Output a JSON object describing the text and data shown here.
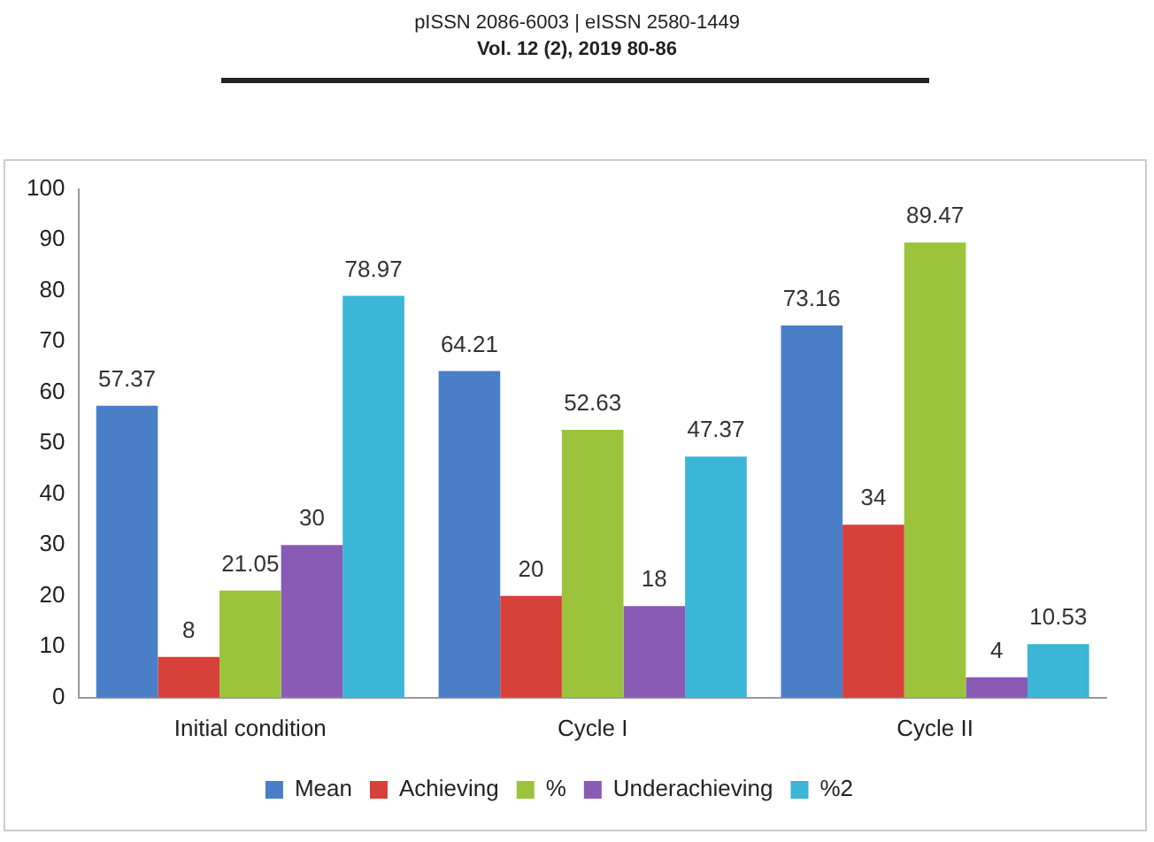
{
  "chart_data": {
    "type": "bar",
    "categories": [
      "Initial condition",
      "Cycle I",
      "Cycle II"
    ],
    "series": [
      {
        "name": "Mean",
        "color": "#4a7fc8",
        "values": [
          57.37,
          64.21,
          73.16
        ]
      },
      {
        "name": "Achieving",
        "color": "#d8403a",
        "values": [
          8,
          20,
          34
        ]
      },
      {
        "name": "%",
        "color": "#9bc43c",
        "values": [
          21.05,
          52.63,
          89.47
        ]
      },
      {
        "name": "Underachieving",
        "color": "#8a5bb4",
        "values": [
          30,
          18,
          4
        ]
      },
      {
        "name": "%2",
        "color": "#3bb6d6",
        "values": [
          78.97,
          47.37,
          10.53
        ]
      }
    ],
    "ylim": [
      0,
      100
    ],
    "yticks": [
      0,
      10,
      20,
      30,
      40,
      50,
      60,
      70,
      80,
      90,
      100
    ],
    "grid": false,
    "legend": "bottom",
    "data_labels": true,
    "annotations": [
      "pISSN 2086-6003 | eISSN 2580-1449",
      "Vol. 12 (2), 2019 80-86"
    ]
  }
}
